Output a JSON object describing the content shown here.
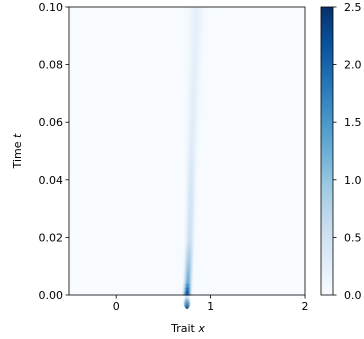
{
  "chart_data": {
    "type": "heatmap",
    "xlabel": "Trait",
    "xlabel_var": "x",
    "ylabel": "Time",
    "ylabel_var": "t",
    "xlim": [
      -0.5,
      2.0
    ],
    "ylim": [
      0.0,
      0.1
    ],
    "x_ticks": [
      "0",
      "1",
      "2"
    ],
    "x_tick_values": [
      0,
      1,
      2
    ],
    "y_ticks": [
      "0.00",
      "0.02",
      "0.04",
      "0.06",
      "0.08",
      "0.10"
    ],
    "y_tick_values": [
      0.0,
      0.02,
      0.04,
      0.06,
      0.07999999999999999,
      0.1
    ],
    "colorbar": {
      "colormap": "Blues",
      "range": [
        0.0,
        2.5
      ],
      "tick_labels": [
        "0.0",
        "0.5",
        "1.0",
        "1.5",
        "2.0",
        "2.5"
      ],
      "tick_values": [
        0.0,
        0.5,
        1.0,
        1.5,
        2.0,
        2.5
      ]
    },
    "density_ridge": {
      "description_points": [
        {
          "t": 0.0,
          "x_center": 0.75,
          "peak": 2.5
        },
        {
          "t": 0.005,
          "x_center": 0.76,
          "peak": 1.3
        },
        {
          "t": 0.02,
          "x_center": 0.78,
          "peak": 0.55
        },
        {
          "t": 0.05,
          "x_center": 0.8,
          "peak": 0.35
        },
        {
          "t": 0.08,
          "x_center": 0.83,
          "peak": 0.3
        },
        {
          "t": 0.1,
          "x_center": 0.85,
          "peak": 0.3
        }
      ]
    }
  }
}
